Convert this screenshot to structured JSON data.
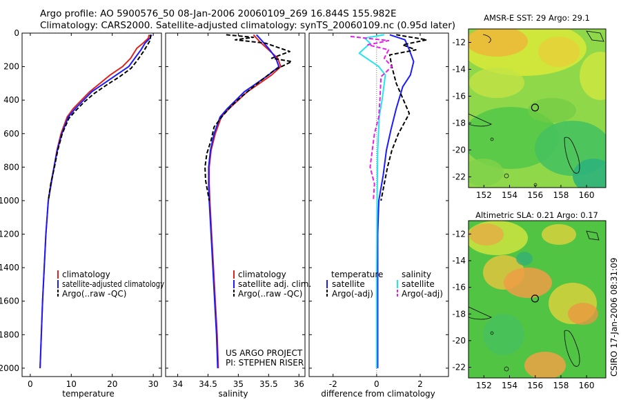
{
  "header": {
    "title_line1": "Argo profile: AO 5900576_50 08-Jan-2006 20060109_269 16.844S 155.982E",
    "title_line2": "Climatology: CARS2000. Satellite-adjusted climatology: synTS_20060109.nc (0.95d later)"
  },
  "colors": {
    "red": "#e0201b",
    "blue": "#1a1aff",
    "black": "#000000",
    "cyan": "#22e6ee",
    "magenta": "#e81ee8",
    "ocean_green": "#3fbf3f",
    "warm": "#f5a623"
  },
  "chart_data": [
    {
      "id": "temperature",
      "type": "line",
      "xlabel": "temperature",
      "ylabel": "",
      "xlim": [
        -2,
        32
      ],
      "ylim": [
        2050,
        0
      ],
      "xticks": [
        0,
        10,
        20,
        30
      ],
      "yticks": [
        0,
        200,
        400,
        600,
        800,
        1000,
        1200,
        1400,
        1600,
        1800,
        2000
      ],
      "legend": [
        "climatology",
        "satellite-adjusted climatology",
        "Argo(..raw -QC)"
      ],
      "series": [
        {
          "name": "climatology",
          "color": "red",
          "dash": "",
          "points": [
            [
              29,
              10
            ],
            [
              28.8,
              30
            ],
            [
              27.5,
              60
            ],
            [
              26,
              90
            ],
            [
              24.5,
              150
            ],
            [
              22.5,
              200
            ],
            [
              19.5,
              250
            ],
            [
              17,
              300
            ],
            [
              14.5,
              350
            ],
            [
              12.5,
              400
            ],
            [
              10.5,
              450
            ],
            [
              9,
              500
            ],
            [
              7.5,
              600
            ],
            [
              6.5,
              700
            ],
            [
              5.8,
              800
            ],
            [
              5,
              900
            ],
            [
              4.4,
              1000
            ],
            [
              3.8,
              1200
            ],
            [
              3.4,
              1400
            ],
            [
              3,
              1600
            ],
            [
              2.7,
              1800
            ],
            [
              2.4,
              2000
            ]
          ]
        },
        {
          "name": "satellite-adjusted climatology",
          "color": "blue",
          "dash": "",
          "points": [
            [
              29.6,
              10
            ],
            [
              29.2,
              30
            ],
            [
              28,
              60
            ],
            [
              27,
              100
            ],
            [
              25.5,
              150
            ],
            [
              24,
              200
            ],
            [
              21,
              250
            ],
            [
              18,
              300
            ],
            [
              15,
              350
            ],
            [
              13,
              400
            ],
            [
              11,
              450
            ],
            [
              9.3,
              500
            ],
            [
              7.7,
              600
            ],
            [
              6.6,
              700
            ],
            [
              5.8,
              800
            ],
            [
              5.1,
              900
            ],
            [
              4.4,
              1000
            ],
            [
              3.8,
              1200
            ],
            [
              3.4,
              1400
            ],
            [
              3,
              1600
            ],
            [
              2.7,
              1800
            ],
            [
              2.4,
              2000
            ]
          ]
        },
        {
          "name": "Argo(..raw -QC)",
          "color": "black",
          "dash": "6,3",
          "points": [
            [
              29.3,
              10
            ],
            [
              29.3,
              40
            ],
            [
              28.6,
              70
            ],
            [
              27.6,
              110
            ],
            [
              26.2,
              160
            ],
            [
              24.6,
              210
            ],
            [
              21.8,
              260
            ],
            [
              18.6,
              310
            ],
            [
              15.6,
              360
            ],
            [
              13.2,
              410
            ],
            [
              11.2,
              460
            ],
            [
              9.4,
              510
            ],
            [
              7.8,
              600
            ],
            [
              6.7,
              700
            ],
            [
              5.9,
              800
            ],
            [
              5,
              900
            ],
            [
              4.4,
              1000
            ]
          ]
        }
      ]
    },
    {
      "id": "salinity",
      "type": "line",
      "xlabel": "salinity",
      "xlim": [
        33.8,
        36.1
      ],
      "ylim": [
        2050,
        0
      ],
      "xticks": [
        34,
        34.5,
        35,
        35.5,
        36
      ],
      "yticks": [
        0,
        200,
        400,
        600,
        800,
        1000,
        1200,
        1400,
        1600,
        1800,
        2000
      ],
      "legend": [
        "climatology",
        "satellite adj. clim.",
        "Argo(..raw -QC)"
      ],
      "annotation": [
        "US ARGO PROJECT",
        "PI: STEPHEN RISER"
      ],
      "series": [
        {
          "name": "climatology",
          "color": "red",
          "dash": "",
          "points": [
            [
              35.25,
              10
            ],
            [
              35.35,
              50
            ],
            [
              35.5,
              100
            ],
            [
              35.65,
              150
            ],
            [
              35.7,
              200
            ],
            [
              35.55,
              250
            ],
            [
              35.35,
              300
            ],
            [
              35.15,
              350
            ],
            [
              35,
              400
            ],
            [
              34.85,
              450
            ],
            [
              34.72,
              500
            ],
            [
              34.62,
              600
            ],
            [
              34.55,
              700
            ],
            [
              34.52,
              800
            ],
            [
              34.52,
              900
            ],
            [
              34.53,
              1000
            ],
            [
              34.56,
              1200
            ],
            [
              34.59,
              1400
            ],
            [
              34.62,
              1600
            ],
            [
              34.65,
              1800
            ],
            [
              34.67,
              2000
            ]
          ]
        },
        {
          "name": "satellite adj. clim.",
          "color": "blue",
          "dash": "",
          "points": [
            [
              35.3,
              10
            ],
            [
              35.4,
              50
            ],
            [
              35.52,
              100
            ],
            [
              35.62,
              150
            ],
            [
              35.67,
              200
            ],
            [
              35.5,
              250
            ],
            [
              35.3,
              300
            ],
            [
              35.1,
              350
            ],
            [
              34.96,
              400
            ],
            [
              34.82,
              450
            ],
            [
              34.7,
              500
            ],
            [
              34.6,
              600
            ],
            [
              34.54,
              700
            ],
            [
              34.51,
              800
            ],
            [
              34.51,
              900
            ],
            [
              34.52,
              1000
            ],
            [
              34.55,
              1200
            ],
            [
              34.58,
              1400
            ],
            [
              34.61,
              1600
            ],
            [
              34.64,
              1800
            ],
            [
              34.66,
              2000
            ]
          ]
        },
        {
          "name": "Argo(..raw -QC)",
          "color": "black",
          "dash": "6,3",
          "points": [
            [
              34.8,
              10
            ],
            [
              35.25,
              25
            ],
            [
              34.95,
              40
            ],
            [
              35.45,
              60
            ],
            [
              35.85,
              110
            ],
            [
              35.55,
              150
            ],
            [
              35.88,
              170
            ],
            [
              35.6,
              220
            ],
            [
              35.42,
              270
            ],
            [
              35.25,
              320
            ],
            [
              35.05,
              380
            ],
            [
              34.9,
              430
            ],
            [
              34.75,
              490
            ],
            [
              34.6,
              560
            ],
            [
              34.55,
              640
            ],
            [
              34.48,
              720
            ],
            [
              34.45,
              800
            ],
            [
              34.46,
              880
            ],
            [
              34.5,
              960
            ],
            [
              34.52,
              1000
            ]
          ]
        }
      ]
    },
    {
      "id": "difference",
      "type": "line",
      "xlabel": "difference from climatology",
      "xlim": [
        -3.1,
        3.3
      ],
      "ylim": [
        2050,
        0
      ],
      "xticks": [
        -2,
        0,
        2
      ],
      "yticks": [
        0,
        200,
        400,
        600,
        800,
        1000,
        1200,
        1400,
        1600,
        1800,
        2000
      ],
      "legend_left_title": "temperature",
      "legend_right_title": "salinity",
      "legend": [
        "satellite",
        "Argo(-adj)",
        "satellite",
        "Argo(-adj)"
      ],
      "series": [
        {
          "name": "temperature satellite",
          "color": "blue",
          "dash": "",
          "points": [
            [
              0.6,
              10
            ],
            [
              1.3,
              40
            ],
            [
              1.5,
              100
            ],
            [
              1.7,
              170
            ],
            [
              1.55,
              250
            ],
            [
              1.2,
              320
            ],
            [
              0.9,
              450
            ],
            [
              0.65,
              580
            ],
            [
              0.45,
              700
            ],
            [
              0.3,
              850
            ],
            [
              0.1,
              1000
            ],
            [
              0.05,
              1200
            ],
            [
              0.05,
              1600
            ],
            [
              0.05,
              2000
            ]
          ]
        },
        {
          "name": "temperature Argo(-adj)",
          "color": "black",
          "dash": "6,3",
          "points": [
            [
              0.9,
              10
            ],
            [
              2.3,
              40
            ],
            [
              1.2,
              70
            ],
            [
              1.8,
              100
            ],
            [
              0.6,
              130
            ],
            [
              0.7,
              200
            ],
            [
              0.9,
              300
            ],
            [
              1.5,
              480
            ],
            [
              1.0,
              600
            ],
            [
              0.7,
              700
            ],
            [
              0.5,
              800
            ],
            [
              0.35,
              900
            ],
            [
              0.2,
              1000
            ]
          ]
        },
        {
          "name": "salinity satellite",
          "color": "cyan",
          "dash": "",
          "points": [
            [
              0.35,
              10
            ],
            [
              -0.55,
              30
            ],
            [
              -0.3,
              60
            ],
            [
              -0.8,
              120
            ],
            [
              0.1,
              200
            ],
            [
              0.4,
              250
            ],
            [
              0.35,
              300
            ],
            [
              0.25,
              400
            ],
            [
              0.12,
              500
            ],
            [
              0.05,
              700
            ],
            [
              0.02,
              1000
            ],
            [
              0.0,
              1400
            ],
            [
              0.0,
              2000
            ]
          ]
        },
        {
          "name": "salinity Argo(-adj)",
          "color": "magenta",
          "dash": "6,3",
          "points": [
            [
              -1.2,
              20
            ],
            [
              0.55,
              45
            ],
            [
              -0.4,
              70
            ],
            [
              0.55,
              100
            ],
            [
              0.35,
              150
            ],
            [
              0.7,
              200
            ],
            [
              0.2,
              260
            ],
            [
              0.15,
              400
            ],
            [
              0.1,
              500
            ],
            [
              -0.1,
              600
            ],
            [
              -0.2,
              700
            ],
            [
              -0.3,
              800
            ],
            [
              -0.1,
              900
            ],
            [
              -0.15,
              1000
            ]
          ]
        }
      ]
    },
    {
      "id": "sst_map",
      "type": "heatmap",
      "title": "AMSR-E SST: 29  Argo: 29.1",
      "xlim": [
        150.8,
        161.5
      ],
      "ylim": [
        -22.8,
        -11
      ],
      "xticks": [
        152,
        154,
        156,
        158,
        160
      ],
      "yticks": [
        -12,
        -14,
        -16,
        -18,
        -20,
        -22
      ],
      "marker": [
        155.982,
        -16.844
      ]
    },
    {
      "id": "sla_map",
      "type": "heatmap",
      "title": "Altimetric SLA: 0.21  Argo: 0.17",
      "xlim": [
        150.8,
        161.5
      ],
      "ylim": [
        -22.8,
        -11
      ],
      "xticks": [
        152,
        154,
        156,
        158,
        160
      ],
      "yticks": [
        -12,
        -14,
        -16,
        -18,
        -20,
        -22
      ],
      "marker": [
        155.982,
        -16.844
      ]
    }
  ],
  "footer": {
    "stamp": "CSIRO 17-Jan-2006 08:31:09"
  }
}
